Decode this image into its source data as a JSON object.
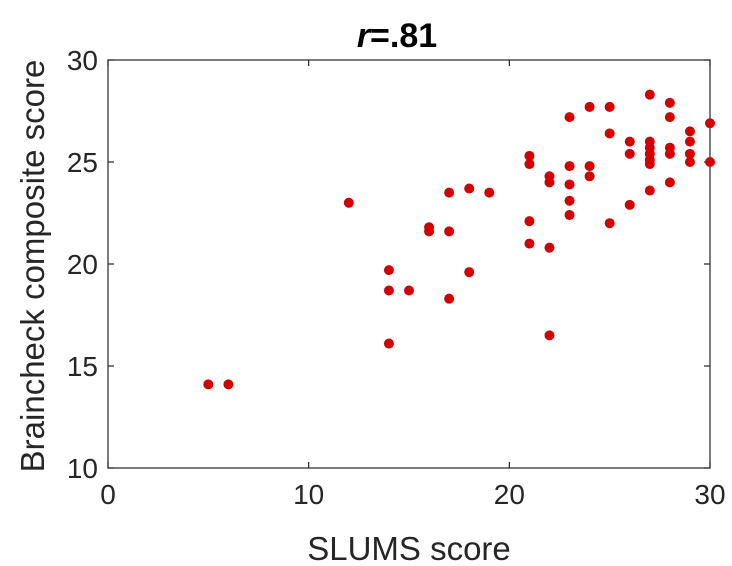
{
  "chart_data": {
    "type": "scatter",
    "title_prefix": "r",
    "title_suffix": "=.81",
    "xlabel": "SLUMS score",
    "ylabel": "Braincheck composite score",
    "xlim": [
      0,
      30
    ],
    "ylim": [
      10,
      30
    ],
    "x_ticks": [
      "0",
      "10",
      "20",
      "30"
    ],
    "y_ticks": [
      "10",
      "15",
      "20",
      "25",
      "30"
    ],
    "grid": false,
    "marker_color": "#d40000",
    "points": [
      {
        "x": 5,
        "y": 14.1
      },
      {
        "x": 6,
        "y": 14.1
      },
      {
        "x": 12,
        "y": 23.0
      },
      {
        "x": 14,
        "y": 19.7
      },
      {
        "x": 14,
        "y": 18.7
      },
      {
        "x": 14,
        "y": 16.1
      },
      {
        "x": 15,
        "y": 18.7
      },
      {
        "x": 16,
        "y": 21.8
      },
      {
        "x": 16,
        "y": 21.6
      },
      {
        "x": 17,
        "y": 23.5
      },
      {
        "x": 17,
        "y": 21.6
      },
      {
        "x": 17,
        "y": 18.3
      },
      {
        "x": 18,
        "y": 23.7
      },
      {
        "x": 18,
        "y": 19.6
      },
      {
        "x": 19,
        "y": 23.5
      },
      {
        "x": 21,
        "y": 25.3
      },
      {
        "x": 21,
        "y": 24.9
      },
      {
        "x": 21,
        "y": 22.1
      },
      {
        "x": 21,
        "y": 21.0
      },
      {
        "x": 22,
        "y": 24.3
      },
      {
        "x": 22,
        "y": 24.0
      },
      {
        "x": 22,
        "y": 20.8
      },
      {
        "x": 22,
        "y": 16.5
      },
      {
        "x": 23,
        "y": 27.2
      },
      {
        "x": 23,
        "y": 24.8
      },
      {
        "x": 23,
        "y": 23.9
      },
      {
        "x": 23,
        "y": 23.1
      },
      {
        "x": 23,
        "y": 22.4
      },
      {
        "x": 24,
        "y": 27.7
      },
      {
        "x": 24,
        "y": 24.8
      },
      {
        "x": 24,
        "y": 24.3
      },
      {
        "x": 25,
        "y": 27.7
      },
      {
        "x": 25,
        "y": 26.4
      },
      {
        "x": 25,
        "y": 22.0
      },
      {
        "x": 26,
        "y": 26.0
      },
      {
        "x": 26,
        "y": 25.4
      },
      {
        "x": 26,
        "y": 22.9
      },
      {
        "x": 27,
        "y": 28.3
      },
      {
        "x": 27,
        "y": 26.0
      },
      {
        "x": 27,
        "y": 25.7
      },
      {
        "x": 27,
        "y": 25.4
      },
      {
        "x": 27,
        "y": 25.1
      },
      {
        "x": 27,
        "y": 24.9
      },
      {
        "x": 27,
        "y": 23.6
      },
      {
        "x": 28,
        "y": 27.9
      },
      {
        "x": 28,
        "y": 27.2
      },
      {
        "x": 28,
        "y": 25.7
      },
      {
        "x": 28,
        "y": 25.4
      },
      {
        "x": 28,
        "y": 24.0
      },
      {
        "x": 29,
        "y": 26.5
      },
      {
        "x": 29,
        "y": 26.0
      },
      {
        "x": 29,
        "y": 25.4
      },
      {
        "x": 29,
        "y": 25.0
      },
      {
        "x": 30,
        "y": 26.9
      },
      {
        "x": 30,
        "y": 25.0
      }
    ]
  }
}
